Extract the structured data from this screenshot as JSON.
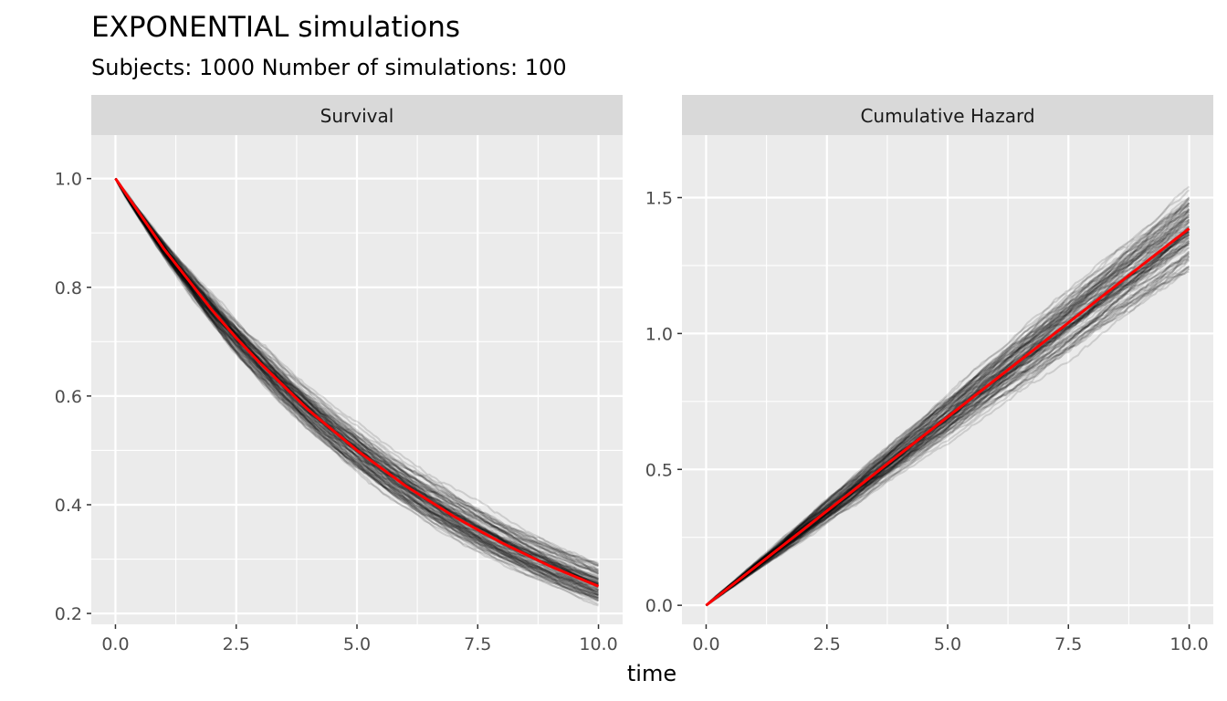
{
  "chart_data": {
    "type": "line",
    "title": "EXPONENTIAL simulations",
    "subtitle": "Subjects: 1000  Number of simulations: 100",
    "xlabel": "time",
    "x_ticks": [
      "0.0",
      "2.5",
      "5.0",
      "7.5",
      "10.0"
    ],
    "x_range": [
      -0.5,
      10.5
    ],
    "grid": true,
    "simulations": 100,
    "rate": 0.1386,
    "colors": {
      "truth": "#ff0000",
      "simulation": "#000000",
      "panel_bg": "#ebebeb",
      "strip_bg": "#d9d9d9",
      "grid": "#ffffff"
    },
    "panels": [
      {
        "label": "Survival",
        "y_ticks": [
          "0.2",
          "0.4",
          "0.6",
          "0.8",
          "1.0"
        ],
        "y_range": [
          0.18,
          1.08
        ],
        "true_curve": {
          "name": "true survival",
          "x": [
            0,
            1,
            2,
            2.5,
            3,
            4,
            5,
            6,
            7,
            7.5,
            8,
            9,
            10
          ],
          "y": [
            1.0,
            0.871,
            0.758,
            0.707,
            0.66,
            0.574,
            0.5,
            0.435,
            0.379,
            0.354,
            0.33,
            0.287,
            0.25
          ]
        },
        "simulation_spread_at_x10": [
          0.195,
          0.275
        ]
      },
      {
        "label": "Cumulative Hazard",
        "y_ticks": [
          "0.0",
          "0.5",
          "1.0",
          "1.5"
        ],
        "y_range": [
          -0.07,
          1.73
        ],
        "true_curve": {
          "name": "true cumulative hazard",
          "x": [
            0,
            1,
            2,
            2.5,
            3,
            4,
            5,
            6,
            7,
            7.5,
            8,
            9,
            10
          ],
          "y": [
            0.0,
            0.139,
            0.277,
            0.347,
            0.416,
            0.555,
            0.693,
            0.832,
            0.97,
            1.04,
            1.109,
            1.248,
            1.386
          ]
        },
        "simulation_spread_at_x10": [
          1.23,
          1.64
        ]
      }
    ]
  }
}
